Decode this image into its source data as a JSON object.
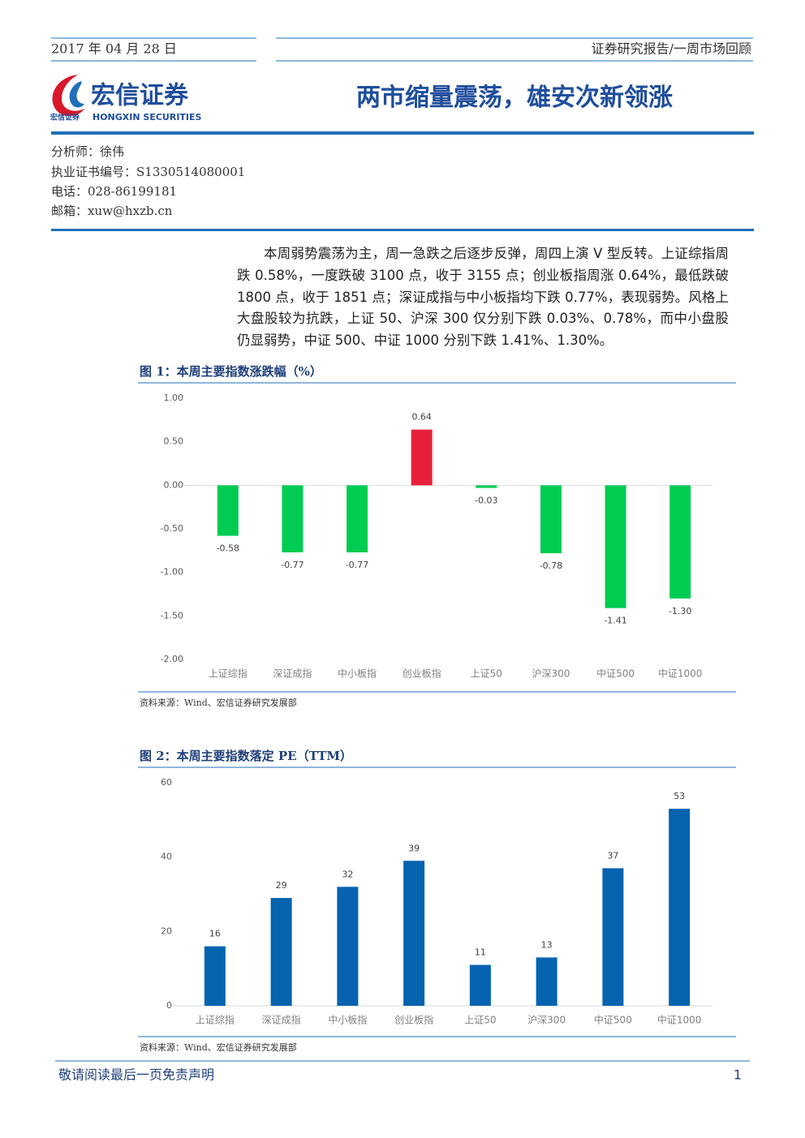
{
  "header": {
    "date": "2017 年 04 月 28 日",
    "report_type": "证券研究报告/一周市场回顾",
    "logo_name": "宏信证券",
    "logo_small": "宏信证券",
    "logo_english": "HONGXIN SECURITIES",
    "title": "两市缩量震荡，雄安次新领涨"
  },
  "analyst": [
    "分析师：徐伟",
    "执业证书编号：S1330514080001",
    "电话：028-86199181",
    "邮箱：xuw@hxzb.cn"
  ],
  "paragraph": "本周弱势震荡为主，周一急跌之后逐步反弹，周四上演 V 型反转。上证综指周跌 0.58%，一度跌破 3100 点，收于 3155 点；创业板指周涨 0.64%，最低跌破 1800 点，收于 1851 点；深证成指与中小板指均下跌 0.77%，表现弱势。风格上大盘股较为抗跌，上证 50、沪深 300 仅分别下跌 0.03%、0.78%，而中小盘股仍显弱势，中证 500、中证 1000 分别下跌 1.41%、1.30%。",
  "chart_data": [
    {
      "type": "bar",
      "title": "图 1：本周主要指数涨跌幅（%）",
      "categories": [
        "上证综指",
        "深证成指",
        "中小板指",
        "创业板指",
        "上证50",
        "沪深300",
        "中证500",
        "中证1000"
      ],
      "values": [
        -0.58,
        -0.77,
        -0.77,
        0.64,
        -0.03,
        -0.78,
        -1.41,
        -1.3
      ],
      "value_labels": [
        "-0.58",
        "-0.77",
        "-0.77",
        "0.64",
        "-0.03",
        "-0.78",
        "-1.41",
        "-1.30"
      ],
      "positive_color": "#e8213b",
      "negative_color": "#00cc52",
      "ylim": [
        -2,
        1
      ],
      "yticks": [
        {
          "value": -2,
          "label": "-2.00"
        },
        {
          "value": -1.5,
          "label": "-1.50"
        },
        {
          "value": -1,
          "label": "-1.00"
        },
        {
          "value": -0.5,
          "label": "-0.50"
        },
        {
          "value": 0,
          "label": "0.00"
        },
        {
          "value": 0.5,
          "label": "0.50"
        },
        {
          "value": 1,
          "label": "1.00"
        }
      ],
      "source": "资料来源：Wind、宏信证券研究发展部"
    },
    {
      "type": "bar",
      "title": "图 2：本周主要指数落定 PE（TTM）",
      "categories": [
        "上证综指",
        "深证成指",
        "中小板指",
        "创业板指",
        "上证50",
        "沪深300",
        "中证500",
        "中证1000"
      ],
      "values": [
        16,
        29,
        32,
        39,
        11,
        13,
        37,
        53
      ],
      "color": "#0563b0",
      "ylim": [
        0,
        60
      ],
      "yticks": [
        0,
        20,
        40,
        60
      ],
      "source": "资料来源：Wind、宏信证券研究发展部"
    }
  ],
  "footer": {
    "disclaimer": "敬请阅读最后一页免责声明",
    "page": "1"
  }
}
